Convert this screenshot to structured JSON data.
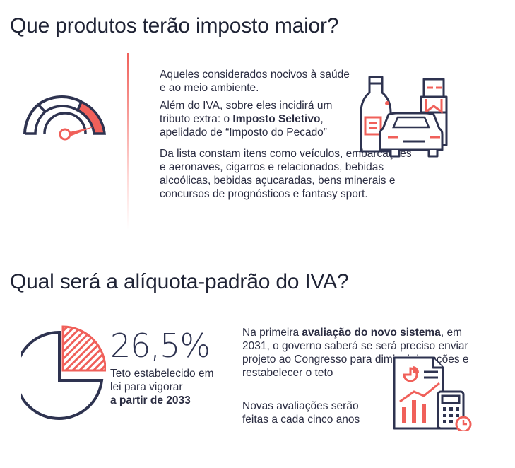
{
  "section1": {
    "title": "Que produtos terão imposto maior?",
    "p1": "Aqueles considerados nocivos à saúde e ao meio ambiente.",
    "p2_a": "Além do IVA, sobre eles incidirá um tributo extra: o ",
    "p2_b": "Imposto Seletivo",
    "p2_c": ", apelidado de “Imposto do Pecado”",
    "p3": "Da lista constam itens como veículos, embarcações e aeronaves, cigarros e relacionados, bebidas alcoólicas, bebidas açucaradas, bens minerais e concursos de prognósticos e fantasy sport."
  },
  "section2": {
    "title": "Qual será a alíquota-padrão do IVA?",
    "rate": "26,5%",
    "rate_caption_a": "Teto estabelecido em lei para vigorar",
    "rate_caption_b": "a partir de 2033",
    "p1_a": "Na primeira ",
    "p1_b": "avaliação do novo sistema",
    "p1_c": ", em 2031, o governo saberá se será preciso enviar projeto ao Congresso para diminuir isenções e restabelecer o teto",
    "p2": "Novas avaliações serão feitas a cada cinco anos"
  },
  "colors": {
    "accent": "#f0605a",
    "dark": "#2e3350"
  },
  "icons": [
    "speedometer-icon",
    "products-icon",
    "pie-chart-icon",
    "report-calculator-icon"
  ]
}
